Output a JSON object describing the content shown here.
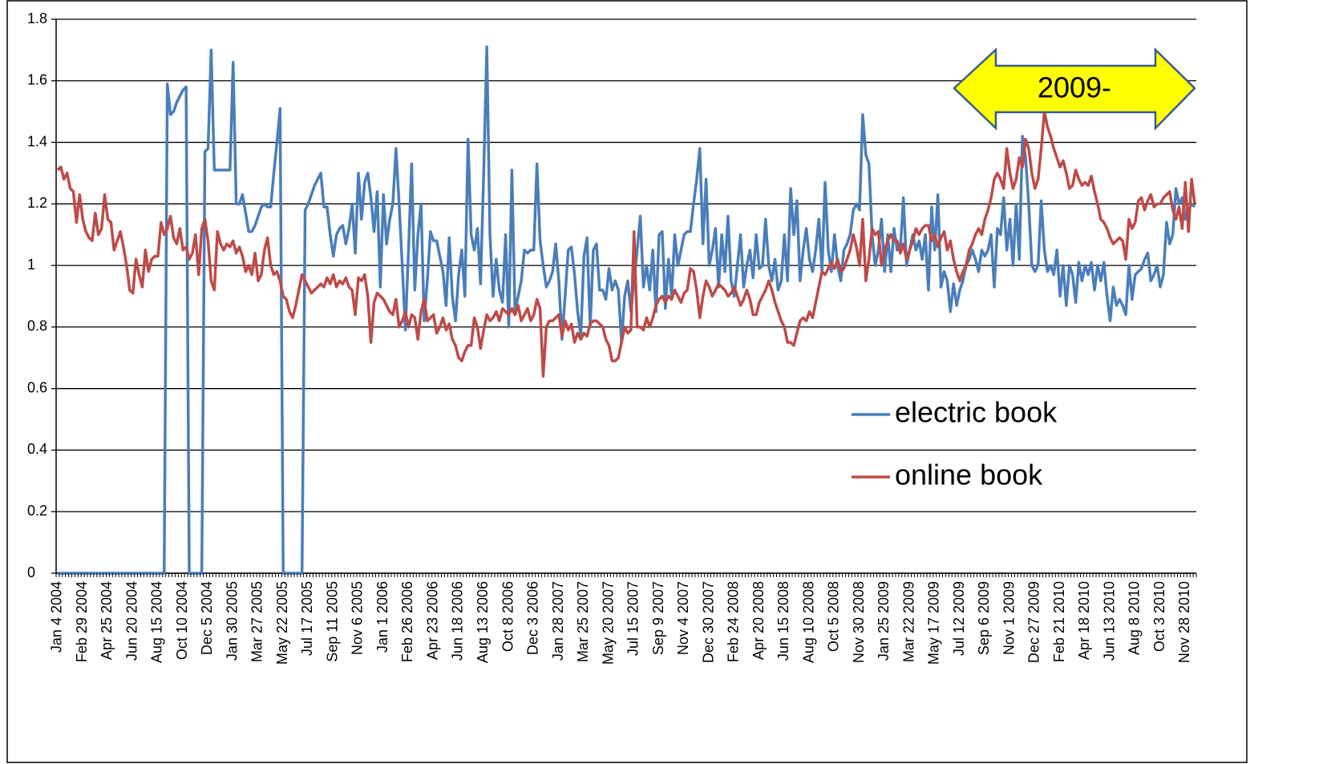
{
  "chart_data": {
    "type": "line",
    "annotation": "2009-",
    "ylim": [
      0,
      1.8
    ],
    "yticks": [
      0,
      0.2,
      0.4,
      0.6,
      0.8,
      1,
      1.2,
      1.4,
      1.6,
      1.8
    ],
    "grid": true,
    "legend": "right",
    "categories": [
      "Jan 4 2004",
      null,
      null,
      null,
      null,
      null,
      null,
      null,
      "Feb 29 2004",
      null,
      null,
      null,
      null,
      null,
      null,
      null,
      "Apr 25 2004",
      null,
      null,
      null,
      null,
      null,
      null,
      null,
      "Jun 20 2004",
      null,
      null,
      null,
      null,
      null,
      null,
      null,
      "Aug 15 2004",
      null,
      null,
      null,
      null,
      null,
      null,
      null,
      "Oct 10 2004",
      null,
      null,
      null,
      null,
      null,
      null,
      null,
      "Dec 5 2004",
      null,
      null,
      null,
      null,
      null,
      null,
      null,
      "Jan 30 2005",
      null,
      null,
      null,
      null,
      null,
      null,
      null,
      "Mar 27 2005",
      null,
      null,
      null,
      null,
      null,
      null,
      null,
      "May 22 2005",
      null,
      null,
      null,
      null,
      null,
      null,
      null,
      "Jul 17 2005",
      null,
      null,
      null,
      null,
      null,
      null,
      null,
      "Sep 11 2005",
      null,
      null,
      null,
      null,
      null,
      null,
      null,
      "Nov 6 2005",
      null,
      null,
      null,
      null,
      null,
      null,
      null,
      "Jan 1 2006",
      null,
      null,
      null,
      null,
      null,
      null,
      null,
      "Feb 26 2006",
      null,
      null,
      null,
      null,
      null,
      null,
      null,
      "Apr 23 2006",
      null,
      null,
      null,
      null,
      null,
      null,
      null,
      "Jun 18 2006",
      null,
      null,
      null,
      null,
      null,
      null,
      null,
      "Aug 13 2006",
      null,
      null,
      null,
      null,
      null,
      null,
      null,
      "Oct 8 2006",
      null,
      null,
      null,
      null,
      null,
      null,
      null,
      "Dec 3 2006",
      null,
      null,
      null,
      null,
      null,
      null,
      null,
      "Jan 28 2007",
      null,
      null,
      null,
      null,
      null,
      null,
      null,
      "Mar 25 2007",
      null,
      null,
      null,
      null,
      null,
      null,
      null,
      "May 20 2007",
      null,
      null,
      null,
      null,
      null,
      null,
      null,
      "Jul 15 2007",
      null,
      null,
      null,
      null,
      null,
      null,
      null,
      "Sep 9 2007",
      null,
      null,
      null,
      null,
      null,
      null,
      null,
      "Nov 4 2007",
      null,
      null,
      null,
      null,
      null,
      null,
      null,
      "Dec 30 2007",
      null,
      null,
      null,
      null,
      null,
      null,
      null,
      "Feb 24 2008",
      null,
      null,
      null,
      null,
      null,
      null,
      null,
      "Apr 20 2008",
      null,
      null,
      null,
      null,
      null,
      null,
      null,
      "Jun 15 2008",
      null,
      null,
      null,
      null,
      null,
      null,
      null,
      "Aug 10 2008",
      null,
      null,
      null,
      null,
      null,
      null,
      null,
      "Oct 5 2008",
      null,
      null,
      null,
      null,
      null,
      null,
      null,
      "Nov 30 2008",
      null,
      null,
      null,
      null,
      null,
      null,
      null,
      "Jan 25 2009",
      null,
      null,
      null,
      null,
      null,
      null,
      null,
      "Mar 22 2009",
      null,
      null,
      null,
      null,
      null,
      null,
      null,
      "May 17 2009",
      null,
      null,
      null,
      null,
      null,
      null,
      null,
      "Jul 12 2009",
      null,
      null,
      null,
      null,
      null,
      null,
      null,
      "Sep 6 2009",
      null,
      null,
      null,
      null,
      null,
      null,
      null,
      "Nov 1 2009",
      null,
      null,
      null,
      null,
      null,
      null,
      null,
      "Dec 27 2009",
      null,
      null,
      null,
      null,
      null,
      null,
      null,
      "Feb 21 2010",
      null,
      null,
      null,
      null,
      null,
      null,
      null,
      "Apr 18 2010",
      null,
      null,
      null,
      null,
      null,
      null,
      null,
      "Jun 13 2010",
      null,
      null,
      null,
      null,
      null,
      null,
      null,
      "Aug 8 2010",
      null,
      null,
      null,
      null,
      null,
      null,
      null,
      "Oct 3 2010",
      null,
      null,
      null,
      null,
      null,
      null,
      null,
      "Nov 28 2010",
      null,
      null,
      null
    ],
    "series": [
      {
        "name": "electric book",
        "color": "#4a7ebb",
        "values": [
          0,
          0,
          0,
          0,
          0,
          0,
          0,
          0,
          0,
          0,
          0,
          0,
          0,
          0,
          0,
          0,
          0,
          0,
          0,
          0,
          0,
          0,
          0,
          0,
          0,
          0,
          0,
          0,
          0,
          0,
          0,
          0,
          0,
          0,
          0,
          1.59,
          1.49,
          1.5,
          1.53,
          1.55,
          1.57,
          1.58,
          0,
          0,
          0,
          0,
          0,
          1.37,
          1.38,
          1.7,
          1.31,
          1.31,
          1.31,
          1.31,
          1.31,
          1.31,
          1.66,
          1.2,
          1.2,
          1.23,
          1.17,
          1.11,
          1.11,
          1.13,
          1.16,
          1.19,
          1.2,
          1.19,
          1.19,
          1.3,
          1.4,
          1.51,
          0,
          0,
          0,
          0,
          0,
          0,
          0,
          1.18,
          1.2,
          1.23,
          1.26,
          1.28,
          1.3,
          1.19,
          1.19,
          1.1,
          1.03,
          1.1,
          1.12,
          1.13,
          1.07,
          1.12,
          1.2,
          1.04,
          1.3,
          1.15,
          1.27,
          1.3,
          1.22,
          1.11,
          1.24,
          0.93,
          1.23,
          1.07,
          1.15,
          1.2,
          1.38,
          1.2,
          1.0,
          0.79,
          1.05,
          1.33,
          0.92,
          1.1,
          1.2,
          0.82,
          0.95,
          1.11,
          1.08,
          1.08,
          1.03,
          0.98,
          0.87,
          1.09,
          0.9,
          0.82,
          0.97,
          1.05,
          0.9,
          1.41,
          1.1,
          1.05,
          1.12,
          0.94,
          1.3,
          1.71,
          1.1,
          0.9,
          1.02,
          0.92,
          0.88,
          1.1,
          0.8,
          1.31,
          0.85,
          0.9,
          0.95,
          1.05,
          1.04,
          1.05,
          1.05,
          1.33,
          1.08,
          1.0,
          0.93,
          0.95,
          0.98,
          1.07,
          0.95,
          0.76,
          0.9,
          1.05,
          1.06,
          0.97,
          0.85,
          0.77,
          1.03,
          1.09,
          0.8,
          1.05,
          1.07,
          0.92,
          0.92,
          0.89,
          0.99,
          0.92,
          0.95,
          0.92,
          0.75,
          0.9,
          0.95,
          0.85,
          0.95,
          1.05,
          1.16,
          0.93,
          1.0,
          0.92,
          1.05,
          0.85,
          1.1,
          1.11,
          0.86,
          1.02,
          0.9,
          1.1,
          1.0,
          1.05,
          1.1,
          1.11,
          1.11,
          1.2,
          1.28,
          1.38,
          1.07,
          1.28,
          1.0,
          1.05,
          1.12,
          0.93,
          1.1,
          0.98,
          1.16,
          0.95,
          0.9,
          1.0,
          1.1,
          0.93,
          1.0,
          1.05,
          0.96,
          1.1,
          0.99,
          1.0,
          1.15,
          1.0,
          0.95,
          1.02,
          0.92,
          0.95,
          1.1,
          0.95,
          1.25,
          1.1,
          1.21,
          0.95,
          1.05,
          1.12,
          1.02,
          0.98,
          1.05,
          1.15,
          0.98,
          1.27,
          1.05,
          0.98,
          1.1,
          1.0,
          0.95,
          1.05,
          1.07,
          1.1,
          1.18,
          1.2,
          1.18,
          1.49,
          1.36,
          1.33,
          1.1,
          1.0,
          1.05,
          1.15,
          0.98,
          1.1,
          0.98,
          1.12,
          1.05,
          1.05,
          1.22,
          1.0,
          1.05,
          1.1,
          1.05,
          1.08,
          1.02,
          1.1,
          0.92,
          1.19,
          1.05,
          1.23,
          0.93,
          0.98,
          0.95,
          0.85,
          0.94,
          0.87,
          0.92,
          0.95,
          1.0,
          1.02,
          1.05,
          1.02,
          0.98,
          1.05,
          1.03,
          1.05,
          1.1,
          0.93,
          1.12,
          1.1,
          1.22,
          1.05,
          1.15,
          1.0,
          1.2,
          1.02,
          1.42,
          1.35,
          1.2,
          1.0,
          0.98,
          1.0,
          1.21,
          1.05,
          0.98,
          1.0,
          0.97,
          1.05,
          0.9,
          1.0,
          0.87,
          1.0,
          0.97,
          0.88,
          1.01,
          0.95,
          1.0,
          0.97,
          1.01,
          0.92,
          1.0,
          0.95,
          1.01,
          0.9,
          0.82,
          0.93,
          0.87,
          0.89,
          0.87,
          0.84,
          1.0,
          0.89,
          0.97,
          0.98,
          0.99,
          1.02,
          1.04,
          0.95,
          0.97,
          1.0,
          0.93,
          0.97,
          1.14,
          1.07,
          1.1,
          1.25,
          1.2,
          1.22,
          1.15,
          1.18,
          1.2,
          1.19
        ]
      },
      {
        "name": "online book",
        "color": "#be4b48",
        "values": [
          1.31,
          1.32,
          1.28,
          1.3,
          1.25,
          1.24,
          1.14,
          1.23,
          1.15,
          1.11,
          1.09,
          1.08,
          1.17,
          1.1,
          1.12,
          1.23,
          1.15,
          1.14,
          1.05,
          1.08,
          1.11,
          1.06,
          1.0,
          0.92,
          0.91,
          1.02,
          0.97,
          0.93,
          1.05,
          0.98,
          1.02,
          1.03,
          1.03,
          1.14,
          1.1,
          1.12,
          1.16,
          1.09,
          1.07,
          1.12,
          1.05,
          1.06,
          1.02,
          1.04,
          1.1,
          0.97,
          1.12,
          1.15,
          1.08,
          0.95,
          0.92,
          1.11,
          1.07,
          1.05,
          1.07,
          1.06,
          1.08,
          1.04,
          1.06,
          1.03,
          0.98,
          1.0,
          0.97,
          1.04,
          0.95,
          0.97,
          1.05,
          1.09,
          1.0,
          0.97,
          0.98,
          0.95,
          0.9,
          0.89,
          0.85,
          0.83,
          0.87,
          0.92,
          0.97,
          0.95,
          0.93,
          0.91,
          0.92,
          0.93,
          0.94,
          0.93,
          0.96,
          0.94,
          0.97,
          0.93,
          0.95,
          0.94,
          0.96,
          0.93,
          0.92,
          0.84,
          0.96,
          0.95,
          0.97,
          0.9,
          0.75,
          0.88,
          0.91,
          0.9,
          0.89,
          0.87,
          0.85,
          0.84,
          0.89,
          0.8,
          0.82,
          0.85,
          0.8,
          0.84,
          0.83,
          0.76,
          0.85,
          0.89,
          0.82,
          0.83,
          0.84,
          0.78,
          0.8,
          0.83,
          0.79,
          0.81,
          0.76,
          0.74,
          0.7,
          0.69,
          0.72,
          0.74,
          0.74,
          0.83,
          0.8,
          0.73,
          0.79,
          0.84,
          0.82,
          0.83,
          0.85,
          0.82,
          0.86,
          0.85,
          0.84,
          0.86,
          0.84,
          0.87,
          0.82,
          0.84,
          0.86,
          0.82,
          0.84,
          0.89,
          0.86,
          0.64,
          0.8,
          0.82,
          0.82,
          0.83,
          0.84,
          0.77,
          0.82,
          0.79,
          0.81,
          0.75,
          0.78,
          0.76,
          0.78,
          0.77,
          0.81,
          0.82,
          0.82,
          0.81,
          0.8,
          0.76,
          0.74,
          0.69,
          0.69,
          0.7,
          0.75,
          0.8,
          0.78,
          0.79,
          1.11,
          0.8,
          0.8,
          0.79,
          0.83,
          0.8,
          0.83,
          0.87,
          0.89,
          0.9,
          0.88,
          0.9,
          0.89,
          0.92,
          0.9,
          0.88,
          0.91,
          0.92,
          0.99,
          0.98,
          0.92,
          0.83,
          0.9,
          0.95,
          0.93,
          0.9,
          0.92,
          0.94,
          0.93,
          0.92,
          0.9,
          0.91,
          0.93,
          0.9,
          0.87,
          0.89,
          0.92,
          0.89,
          0.84,
          0.84,
          0.88,
          0.9,
          0.92,
          0.95,
          0.92,
          0.88,
          0.85,
          0.82,
          0.8,
          0.75,
          0.75,
          0.74,
          0.78,
          0.82,
          0.83,
          0.82,
          0.85,
          0.83,
          0.88,
          0.93,
          0.98,
          0.97,
          0.99,
          1.01,
          0.99,
          1.02,
          0.98,
          0.99,
          1.02,
          1.05,
          1.1,
          1.06,
          1.0,
          1.15,
          0.95,
          1.02,
          1.12,
          1.1,
          1.11,
          1.0,
          1.05,
          1.08,
          1.1,
          1.08,
          1.08,
          1.04,
          1.07,
          1.02,
          1.05,
          1.08,
          1.12,
          1.1,
          1.12,
          1.13,
          1.13,
          1.08,
          1.1,
          1.06,
          1.09,
          1.11,
          1.05,
          1.08,
          1.02,
          0.98,
          0.95,
          0.98,
          1.0,
          1.05,
          1.07,
          1.1,
          1.12,
          1.1,
          1.15,
          1.18,
          1.22,
          1.28,
          1.3,
          1.28,
          1.25,
          1.38,
          1.3,
          1.25,
          1.28,
          1.35,
          1.32,
          1.41,
          1.38,
          1.3,
          1.25,
          1.28,
          1.38,
          1.5,
          1.45,
          1.42,
          1.38,
          1.35,
          1.32,
          1.34,
          1.3,
          1.25,
          1.26,
          1.31,
          1.28,
          1.26,
          1.27,
          1.26,
          1.29,
          1.24,
          1.2,
          1.15,
          1.14,
          1.12,
          1.09,
          1.07,
          1.08,
          1.09,
          1.08,
          1.02,
          1.15,
          1.12,
          1.14,
          1.21,
          1.22,
          1.18,
          1.21,
          1.23,
          1.19,
          1.2,
          1.2,
          1.22,
          1.23,
          1.24,
          1.18,
          1.15,
          1.19,
          1.12,
          1.27,
          1.11,
          1.28,
          1.2
        ]
      }
    ]
  }
}
